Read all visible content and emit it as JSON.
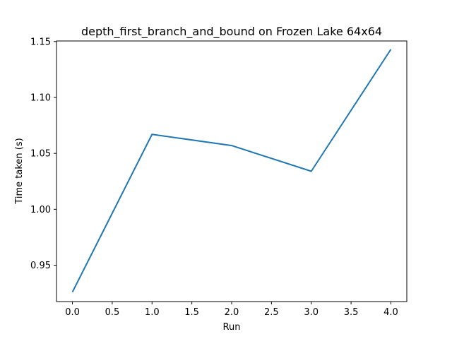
{
  "chart_data": {
    "type": "line",
    "title": "depth_first_branch_and_bound on Frozen Lake 64x64",
    "xlabel": "Run",
    "ylabel": "Time taken (s)",
    "x": [
      0,
      1,
      2,
      3,
      4
    ],
    "series": [
      {
        "values": [
          0.926,
          1.067,
          1.057,
          1.034,
          1.143
        ],
        "color": "#1f77b4"
      }
    ],
    "xlim": [
      -0.2,
      4.2
    ],
    "ylim": [
      0.9175,
      1.1505
    ],
    "xticks": [
      0.0,
      0.5,
      1.0,
      1.5,
      2.0,
      2.5,
      3.0,
      3.5,
      4.0
    ],
    "xtick_labels": [
      "0.0",
      "0.5",
      "1.0",
      "1.5",
      "2.0",
      "2.5",
      "3.0",
      "3.5",
      "4.0"
    ],
    "yticks": [
      0.95,
      1.0,
      1.05,
      1.1,
      1.15
    ],
    "ytick_labels": [
      "0.95",
      "1.00",
      "1.05",
      "1.10",
      "1.15"
    ],
    "grid": false,
    "legend": false
  }
}
